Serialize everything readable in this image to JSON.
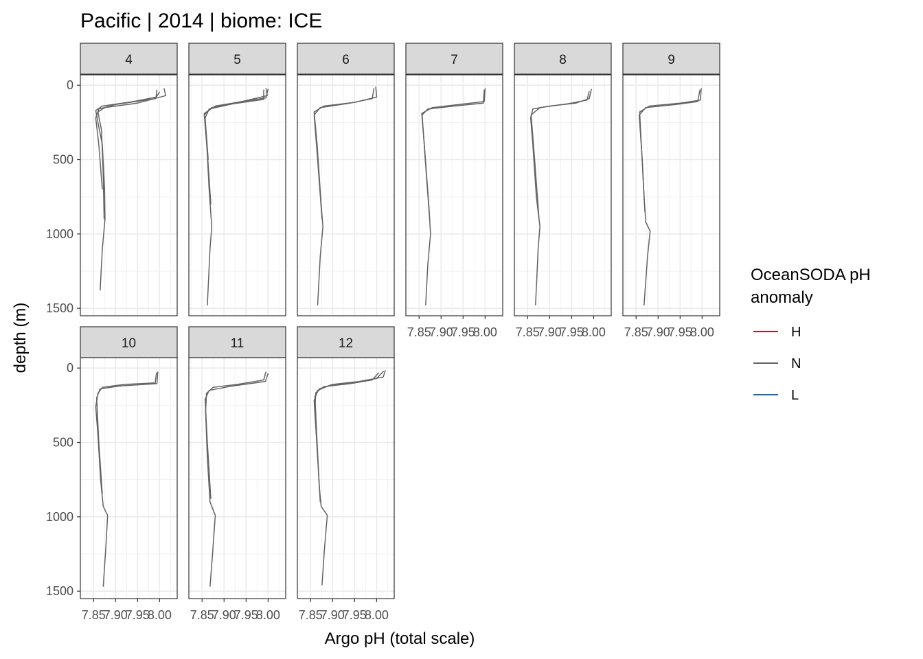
{
  "chart_data": {
    "type": "line",
    "title": "Pacific | 2014 | biome: ICE",
    "xlabel": "Argo pH (total scale)",
    "ylabel": "depth (m)",
    "x_ticks": [
      "7.85",
      "7.90",
      "7.95",
      "8.00"
    ],
    "y_ticks": [
      "0",
      "500",
      "1000",
      "1500"
    ],
    "xlim": [
      7.82,
      8.04
    ],
    "ylim": [
      1550,
      -70
    ],
    "y_reversed": true,
    "grid": true,
    "legend_placement": "right",
    "legend": {
      "title_line1": "OceanSODA pH",
      "title_line2": "anomaly",
      "items": [
        {
          "label": "H",
          "color": "#b2182b"
        },
        {
          "label": "N",
          "color": "#636363"
        },
        {
          "label": "L",
          "color": "#2166ac"
        }
      ]
    },
    "panels": [
      {
        "label": "4",
        "series": [
          {
            "anomaly": "N",
            "points": [
              [
                7.994,
                30
              ],
              [
                7.992,
                80
              ],
              [
                7.94,
                110
              ],
              [
                7.87,
                140
              ],
              [
                7.855,
                170
              ],
              [
                7.86,
                250
              ],
              [
                7.87,
                400
              ],
              [
                7.875,
                700
              ],
              [
                7.876,
                900
              ],
              [
                7.87,
                1100
              ],
              [
                7.865,
                1380
              ]
            ]
          },
          {
            "anomaly": "N",
            "points": [
              [
                8.01,
                20
              ],
              [
                8.014,
                70
              ],
              [
                7.95,
                120
              ],
              [
                7.875,
                150
              ],
              [
                7.86,
                180
              ],
              [
                7.868,
                300
              ],
              [
                7.872,
                600
              ],
              [
                7.874,
                900
              ]
            ]
          },
          {
            "anomaly": "N",
            "points": [
              [
                8.0,
                45
              ],
              [
                7.99,
                90
              ],
              [
                7.9,
                130
              ],
              [
                7.862,
                160
              ],
              [
                7.855,
                220
              ],
              [
                7.862,
                400
              ],
              [
                7.87,
                700
              ]
            ]
          }
        ]
      },
      {
        "label": "5",
        "series": [
          {
            "anomaly": "N",
            "points": [
              [
                7.995,
                20
              ],
              [
                7.998,
                70
              ],
              [
                7.94,
                110
              ],
              [
                7.88,
                140
              ],
              [
                7.855,
                190
              ],
              [
                7.86,
                350
              ],
              [
                7.866,
                700
              ],
              [
                7.872,
                950
              ],
              [
                7.868,
                1100
              ],
              [
                7.862,
                1480
              ]
            ]
          },
          {
            "anomaly": "N",
            "points": [
              [
                8.0,
                25
              ],
              [
                7.995,
                85
              ],
              [
                7.93,
                115
              ],
              [
                7.872,
                150
              ],
              [
                7.855,
                200
              ],
              [
                7.862,
                450
              ],
              [
                7.87,
                800
              ]
            ]
          },
          {
            "anomaly": "N",
            "points": [
              [
                7.99,
                30
              ],
              [
                7.99,
                95
              ],
              [
                7.92,
                125
              ],
              [
                7.866,
                160
              ],
              [
                7.857,
                220
              ],
              [
                7.864,
                500
              ]
            ]
          }
        ]
      },
      {
        "label": "6",
        "series": [
          {
            "anomaly": "N",
            "points": [
              [
                7.998,
                10
              ],
              [
                8.0,
                80
              ],
              [
                7.95,
                115
              ],
              [
                7.88,
                140
              ],
              [
                7.858,
                180
              ],
              [
                7.865,
                400
              ],
              [
                7.874,
                800
              ],
              [
                7.878,
                950
              ],
              [
                7.872,
                1150
              ],
              [
                7.866,
                1480
              ]
            ]
          },
          {
            "anomaly": "N",
            "points": [
              [
                7.994,
                20
              ],
              [
                7.99,
                90
              ],
              [
                7.94,
                120
              ],
              [
                7.872,
                150
              ],
              [
                7.858,
                200
              ],
              [
                7.866,
                500
              ],
              [
                7.876,
                900
              ]
            ]
          }
        ]
      },
      {
        "label": "7",
        "series": [
          {
            "anomaly": "N",
            "points": [
              [
                8.0,
                20
              ],
              [
                7.998,
                110
              ],
              [
                7.94,
                130
              ],
              [
                7.88,
                150
              ],
              [
                7.856,
                190
              ],
              [
                7.862,
                400
              ],
              [
                7.872,
                800
              ],
              [
                7.876,
                1000
              ],
              [
                7.87,
                1200
              ],
              [
                7.865,
                1480
              ]
            ]
          },
          {
            "anomaly": "N",
            "points": [
              [
                7.998,
                30
              ],
              [
                7.996,
                120
              ],
              [
                7.93,
                140
              ],
              [
                7.87,
                160
              ],
              [
                7.857,
                200
              ],
              [
                7.864,
                500
              ],
              [
                7.874,
                900
              ]
            ]
          }
        ]
      },
      {
        "label": "8",
        "series": [
          {
            "anomaly": "N",
            "points": [
              [
                7.995,
                25
              ],
              [
                7.99,
                90
              ],
              [
                7.96,
                120
              ],
              [
                7.9,
                140
              ],
              [
                7.862,
                160
              ],
              [
                7.857,
                220
              ],
              [
                7.862,
                400
              ],
              [
                7.87,
                750
              ],
              [
                7.878,
                950
              ],
              [
                7.874,
                1100
              ],
              [
                7.868,
                1480
              ]
            ]
          },
          {
            "anomaly": "N",
            "points": [
              [
                7.99,
                40
              ],
              [
                7.985,
                100
              ],
              [
                7.94,
                125
              ],
              [
                7.878,
                150
              ],
              [
                7.858,
                200
              ],
              [
                7.866,
                500
              ],
              [
                7.876,
                900
              ]
            ]
          }
        ]
      },
      {
        "label": "9",
        "series": [
          {
            "anomaly": "N",
            "points": [
              [
                7.998,
                20
              ],
              [
                7.996,
                100
              ],
              [
                7.95,
                120
              ],
              [
                7.88,
                140
              ],
              [
                7.858,
                180
              ],
              [
                7.862,
                400
              ],
              [
                7.868,
                750
              ],
              [
                7.872,
                920
              ],
              [
                7.882,
                980
              ],
              [
                7.876,
                1150
              ],
              [
                7.868,
                1480
              ]
            ]
          },
          {
            "anomaly": "N",
            "points": [
              [
                7.995,
                30
              ],
              [
                7.99,
                110
              ],
              [
                7.94,
                130
              ],
              [
                7.872,
                150
              ],
              [
                7.857,
                200
              ],
              [
                7.864,
                500
              ],
              [
                7.87,
                850
              ]
            ]
          }
        ]
      },
      {
        "label": "10",
        "series": [
          {
            "anomaly": "N",
            "points": [
              [
                7.993,
                30
              ],
              [
                7.99,
                100
              ],
              [
                7.92,
                110
              ],
              [
                7.87,
                130
              ],
              [
                7.86,
                170
              ],
              [
                7.855,
                260
              ],
              [
                7.86,
                450
              ],
              [
                7.866,
                750
              ],
              [
                7.872,
                930
              ],
              [
                7.882,
                990
              ],
              [
                7.878,
                1200
              ],
              [
                7.872,
                1470
              ]
            ]
          },
          {
            "anomaly": "N",
            "points": [
              [
                7.996,
                25
              ],
              [
                7.994,
                105
              ],
              [
                7.91,
                120
              ],
              [
                7.865,
                140
              ],
              [
                7.857,
                200
              ],
              [
                7.862,
                500
              ],
              [
                7.87,
                850
              ]
            ]
          }
        ]
      },
      {
        "label": "11",
        "series": [
          {
            "anomaly": "N",
            "points": [
              [
                7.995,
                25
              ],
              [
                7.99,
                80
              ],
              [
                7.93,
                110
              ],
              [
                7.875,
                130
              ],
              [
                7.86,
                170
              ],
              [
                7.858,
                300
              ],
              [
                7.862,
                600
              ],
              [
                7.868,
                900
              ],
              [
                7.88,
                990
              ],
              [
                7.875,
                1200
              ],
              [
                7.868,
                1470
              ]
            ]
          },
          {
            "anomaly": "N",
            "points": [
              [
                8.0,
                35
              ],
              [
                7.994,
                90
              ],
              [
                7.92,
                120
              ],
              [
                7.866,
                150
              ],
              [
                7.857,
                210
              ],
              [
                7.862,
                500
              ],
              [
                7.87,
                880
              ]
            ]
          }
        ]
      },
      {
        "label": "12",
        "series": [
          {
            "anomaly": "N",
            "points": [
              [
                8.02,
                15
              ],
              [
                8.015,
                60
              ],
              [
                7.96,
                90
              ],
              [
                7.9,
                110
              ],
              [
                7.87,
                140
              ],
              [
                7.86,
                190
              ],
              [
                7.864,
                450
              ],
              [
                7.87,
                800
              ],
              [
                7.874,
                930
              ],
              [
                7.888,
                990
              ],
              [
                7.882,
                1200
              ],
              [
                7.876,
                1460
              ]
            ]
          },
          {
            "anomaly": "N",
            "points": [
              [
                8.016,
                20
              ],
              [
                8.0,
                70
              ],
              [
                7.95,
                100
              ],
              [
                7.89,
                120
              ],
              [
                7.866,
                150
              ],
              [
                7.858,
                220
              ],
              [
                7.864,
                500
              ],
              [
                7.872,
                900
              ]
            ]
          },
          {
            "anomaly": "N",
            "points": [
              [
                8.005,
                30
              ],
              [
                7.99,
                80
              ],
              [
                7.94,
                105
              ],
              [
                7.88,
                125
              ],
              [
                7.862,
                165
              ],
              [
                7.86,
                260
              ],
              [
                7.866,
                600
              ]
            ]
          }
        ]
      }
    ]
  }
}
